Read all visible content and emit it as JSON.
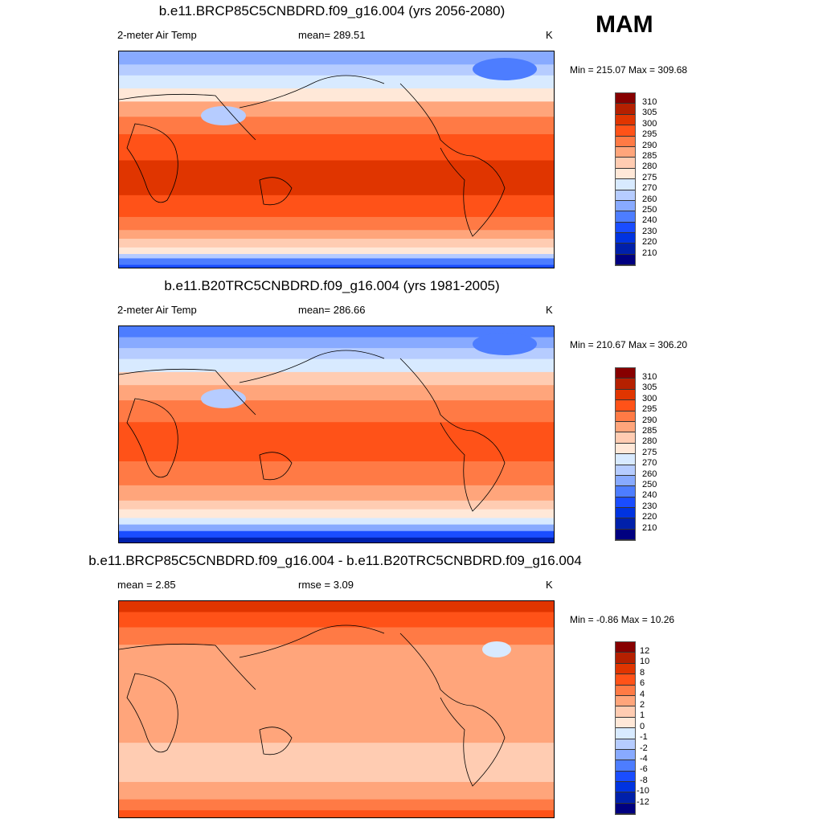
{
  "season": "MAM",
  "panels": [
    {
      "title": "b.e11.BRCP85C5CNBDRD.f09_g16.004 (yrs 2056-2080)",
      "left": "2-meter Air Temp",
      "center": "mean= 289.51",
      "units": "K",
      "minmax": "Min = 215.07 Max = 309.68",
      "levels": [
        "310",
        "305",
        "300",
        "295",
        "290",
        "285",
        "280",
        "275",
        "270",
        "260",
        "250",
        "240",
        "230",
        "220",
        "210"
      ]
    },
    {
      "title": "b.e11.B20TRC5CNBDRD.f09_g16.004 (yrs 1981-2005)",
      "left": "2-meter Air Temp",
      "center": "mean= 286.66",
      "units": "K",
      "minmax": "Min = 210.67 Max = 306.20",
      "levels": [
        "310",
        "305",
        "300",
        "295",
        "290",
        "285",
        "280",
        "275",
        "270",
        "260",
        "250",
        "240",
        "230",
        "220",
        "210"
      ]
    },
    {
      "title": "b.e11.BRCP85C5CNBDRD.f09_g16.004 - b.e11.B20TRC5CNBDRD.f09_g16.004",
      "left": "mean =   2.85",
      "center": "rmse =   3.09",
      "units": "K",
      "minmax": "Min =  -0.86 Max =  10.26",
      "levels": [
        "12",
        "10",
        "8",
        "6",
        "4",
        "2",
        "1",
        "0",
        "-1",
        "-2",
        "-4",
        "-6",
        "-8",
        "-10",
        "-12"
      ]
    }
  ],
  "colormap": [
    "#870000",
    "#b52000",
    "#e03500",
    "#ff5218",
    "#ff7a45",
    "#ffa57b",
    "#ffccb2",
    "#ffe8d8",
    "#d8eaff",
    "#b6ccff",
    "#88aaff",
    "#4d7dff",
    "#1a4dff",
    "#0033e0",
    "#0020aa",
    "#000080"
  ]
}
